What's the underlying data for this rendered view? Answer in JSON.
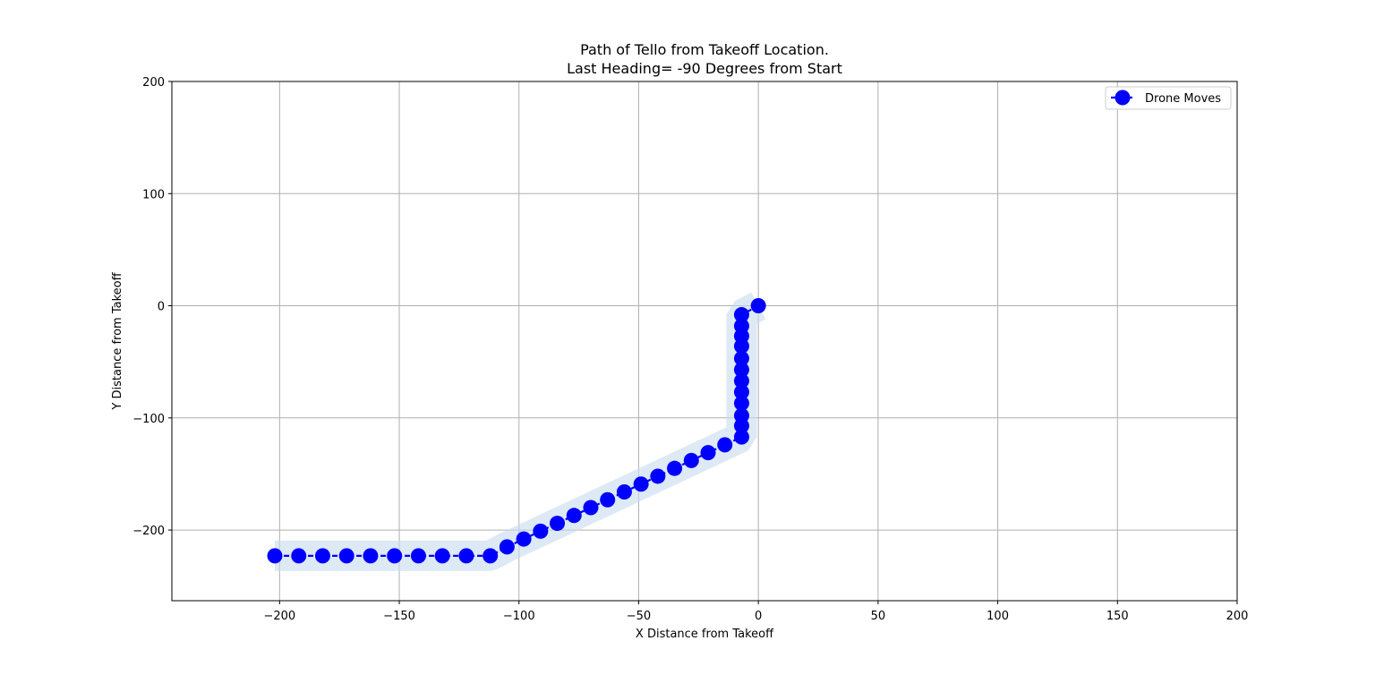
{
  "chart_data": {
    "type": "line",
    "title": "Path of Tello from Takeoff Location.",
    "subtitle": "Last Heading= -90 Degrees from Start",
    "xlabel": "X Distance from Takeoff",
    "ylabel": "Y Distance from Takeoff",
    "xlim": [
      -245,
      200
    ],
    "ylim": [
      -263,
      200
    ],
    "xticks": [
      -200,
      -150,
      -100,
      -50,
      0,
      50,
      100,
      150,
      200
    ],
    "yticks": [
      -200,
      -100,
      0,
      100,
      200
    ],
    "xtick_labels": [
      "−200",
      "−150",
      "−100",
      "−50",
      "0",
      "50",
      "100",
      "150",
      "200"
    ],
    "ytick_labels": [
      "−200",
      "−100",
      "0",
      "100",
      "200"
    ],
    "grid": true,
    "legend_position": "top-right",
    "series": [
      {
        "name": "Drone Moves",
        "color": "#0000ff",
        "marker": "circle",
        "line_style": "dashed",
        "x": [
          0,
          -7,
          -7,
          -7,
          -7,
          -7,
          -7,
          -7,
          -7,
          -7,
          -7,
          -7,
          -7,
          -14,
          -21,
          -28,
          -35,
          -42,
          -49,
          -56,
          -63,
          -70,
          -77,
          -84,
          -91,
          -98,
          -105,
          -112,
          -122,
          -132,
          -142,
          -152,
          -162,
          -172,
          -182,
          -192,
          -202
        ],
        "y": [
          0,
          -8,
          -18,
          -27,
          -36,
          -47,
          -57,
          -67,
          -77,
          -87,
          -98,
          -107,
          -117,
          -124,
          -131,
          -138,
          -145,
          -152,
          -159,
          -166,
          -173,
          -180,
          -187,
          -194,
          -201,
          -208,
          -215,
          -223,
          -223,
          -223,
          -223,
          -223,
          -223,
          -223,
          -223,
          -223,
          -223
        ]
      }
    ],
    "band_color": "#c6dbef"
  }
}
